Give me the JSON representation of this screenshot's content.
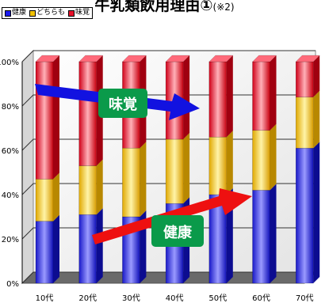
{
  "title": {
    "main": "牛乳類飲用理由①",
    "note": "(※2)"
  },
  "legend": [
    {
      "label": "健康",
      "color": "#1a1aee"
    },
    {
      "label": "どちらも",
      "color": "#f2c200"
    },
    {
      "label": "味覚",
      "color": "#e8102a"
    }
  ],
  "annotations": [
    {
      "text": "味覚",
      "color": "#0a9a4a",
      "arrow_color": "#1212e0"
    },
    {
      "text": "健康",
      "color": "#0a9a4a",
      "arrow_color": "#ee1010"
    }
  ],
  "chart_data": {
    "type": "bar",
    "stacked": true,
    "three_d": true,
    "categories": [
      "10代",
      "20代",
      "30代",
      "40代",
      "50代",
      "60代",
      "70代"
    ],
    "series": [
      {
        "name": "健康",
        "values": [
          28,
          31,
          30,
          36,
          40,
          42,
          61
        ],
        "color": "#1a1aee"
      },
      {
        "name": "どちらも",
        "values": [
          19,
          22,
          31,
          29,
          26,
          27,
          23
        ],
        "color": "#f2c200"
      },
      {
        "name": "味覚",
        "values": [
          53,
          47,
          39,
          35,
          34,
          31,
          16
        ],
        "color": "#e8102a"
      }
    ],
    "ylim": [
      0,
      100
    ],
    "yticks": [
      "0%",
      "20%",
      "40%",
      "60%",
      "80%",
      "100%"
    ],
    "grid": true,
    "legend_position": "top-left"
  }
}
